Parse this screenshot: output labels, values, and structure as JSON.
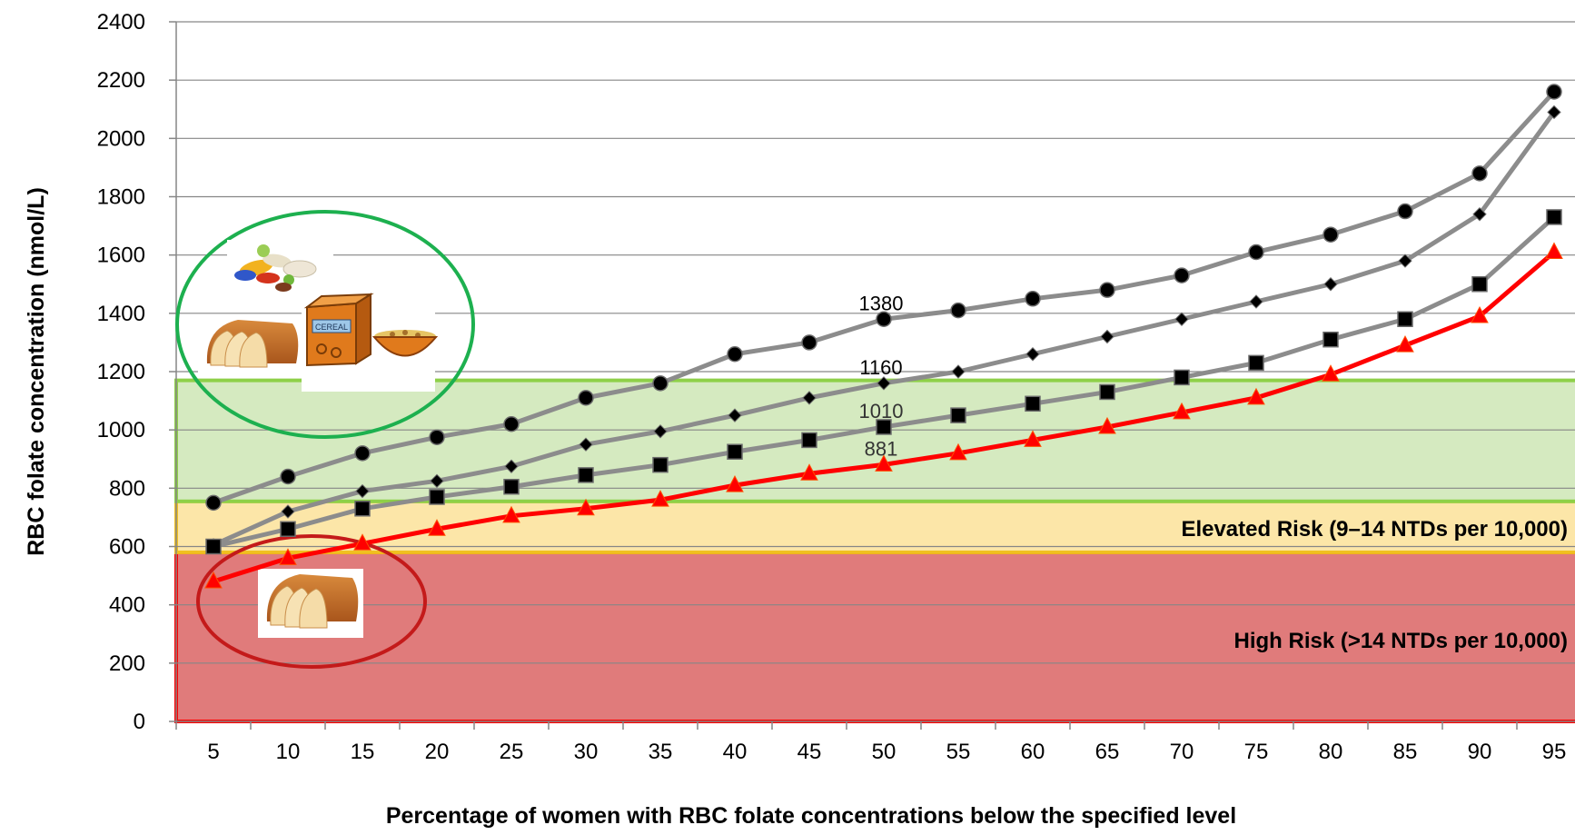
{
  "chart_data": {
    "type": "line",
    "title": "",
    "xlabel": "Percentage of women with RBC folate concentrations below the specified level",
    "ylabel": "RBC folate concentration (nmol/L)",
    "ylim": [
      0,
      2400
    ],
    "yticks": [
      0,
      200,
      400,
      600,
      800,
      1000,
      1200,
      1400,
      1600,
      1800,
      2000,
      2200,
      2400
    ],
    "x": [
      5,
      10,
      15,
      20,
      25,
      30,
      35,
      40,
      45,
      50,
      55,
      60,
      65,
      70,
      75,
      80,
      85,
      90,
      95
    ],
    "grid": true,
    "legend": "none",
    "series": [
      {
        "marker": "circle",
        "color": "#8c8c8c",
        "marker_color": "#000000",
        "values": [
          750,
          840,
          920,
          975,
          1020,
          1110,
          1160,
          1260,
          1300,
          1380,
          1410,
          1450,
          1480,
          1530,
          1610,
          1670,
          1750,
          1880,
          2160
        ]
      },
      {
        "marker": "diamond",
        "color": "#8c8c8c",
        "marker_color": "#000000",
        "values": [
          605,
          720,
          790,
          825,
          875,
          950,
          995,
          1050,
          1110,
          1160,
          1200,
          1260,
          1320,
          1380,
          1440,
          1500,
          1580,
          1740,
          2090
        ]
      },
      {
        "marker": "square",
        "color": "#8c8c8c",
        "marker_color": "#000000",
        "values": [
          600,
          660,
          730,
          770,
          805,
          845,
          880,
          925,
          965,
          1010,
          1050,
          1090,
          1130,
          1180,
          1230,
          1310,
          1380,
          1500,
          1730
        ]
      },
      {
        "marker": "triangle",
        "color": "#ff0000",
        "marker_color": "#ff0000",
        "values": [
          480,
          560,
          610,
          660,
          705,
          730,
          760,
          810,
          850,
          881,
          920,
          965,
          1010,
          1060,
          1110,
          1190,
          1290,
          1390,
          1610
        ]
      }
    ],
    "annotations": [
      {
        "text": "1380",
        "x": 50,
        "y": 1380
      },
      {
        "text": "1160",
        "x": 50,
        "y": 1160
      },
      {
        "text": "1010",
        "x": 50,
        "y": 1010
      },
      {
        "text": "881",
        "x": 50,
        "y": 881
      }
    ],
    "bands": [
      {
        "from": 0,
        "to": 580,
        "fill": "#e07b7b",
        "stroke": "#ff0000",
        "label": "High Risk  (>14 NTDs per 10,000)"
      },
      {
        "from": 580,
        "to": 755,
        "fill": "#fce6a8",
        "stroke": "#f0c020",
        "label": "Elevated Risk (9–14 NTDs per 10,000)"
      },
      {
        "from": 755,
        "to": 1170,
        "fill": "#d5eac0",
        "stroke": "#8ed048",
        "label": ""
      }
    ],
    "colors": {
      "high_risk": "#e07b7b",
      "elevated_risk": "#fce6a8",
      "low_risk": "#d5eac0",
      "circle_green": "#1db04f",
      "circle_red": "#c41a1a"
    },
    "icons": [
      "pills-icon",
      "bread-icon",
      "cereal-box-icon",
      "cereal-bowl-icon"
    ],
    "icon_text": "CEREAL"
  }
}
